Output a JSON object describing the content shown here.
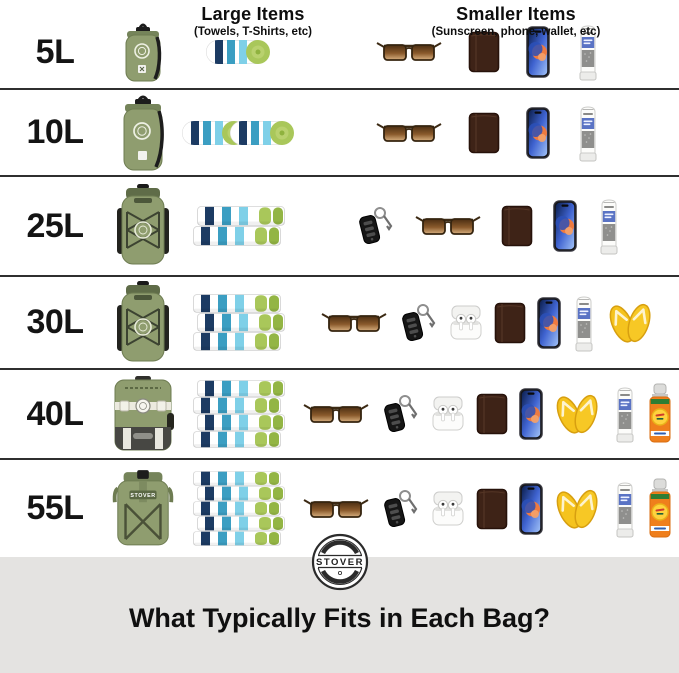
{
  "brand": {
    "name": "STOVER"
  },
  "columns": {
    "large": {
      "title": "Large Items",
      "subtitle": "(Towels, T-Shirts, etc)"
    },
    "small": {
      "title": "Smaller Items",
      "subtitle": "(Sunscreen, phone, wallet, etc)"
    }
  },
  "footer": {
    "title": "What Typically Fits in Each Bag?"
  },
  "colors": {
    "bag_olive": "#8f9d6f",
    "towel_navy": "#1c3b63",
    "towel_teal": "#3b9ec2",
    "towel_cyan": "#7fd0e8",
    "towel_green": "#a9c75a",
    "flip_flop_yellow": "#f5c31e",
    "spray_orange": "#ef7f1c",
    "sunscreen_label_blue": "#5a73c4",
    "footer_bg": "#e4e3e1",
    "divider": "#2f2f2f"
  },
  "rows": [
    {
      "size": "5L",
      "bag": "drybag-small",
      "bag_desc": "small dry bag",
      "towels": {
        "type": "rolled",
        "count": 1
      },
      "items": [
        "sunglasses",
        "wallet",
        "phone",
        "sunscreen-tube"
      ]
    },
    {
      "size": "10L",
      "bag": "drybag-tall",
      "bag_desc": "tall dry bag",
      "towels": {
        "type": "rolled",
        "count": 2
      },
      "items": [
        "sunglasses",
        "wallet",
        "phone",
        "sunscreen-tube"
      ]
    },
    {
      "size": "25L",
      "bag": "backpack-bungee",
      "bag_desc": "dry bag backpack",
      "towels": {
        "type": "folded",
        "count": 2
      },
      "items": [
        "car-keys",
        "sunglasses",
        "wallet",
        "phone",
        "sunscreen-tube"
      ]
    },
    {
      "size": "30L",
      "bag": "backpack-bungee",
      "bag_desc": "dry bag backpack",
      "towels": {
        "type": "folded",
        "count": 3
      },
      "items": [
        "sunglasses",
        "car-keys",
        "airpods",
        "wallet",
        "phone",
        "sunscreen-tube",
        "flip-flops"
      ]
    },
    {
      "size": "40L",
      "bag": "backpack-cooler",
      "bag_desc": "backpack cooler",
      "towels": {
        "type": "folded",
        "count": 4
      },
      "items": [
        "sunglasses",
        "car-keys",
        "airpods",
        "wallet",
        "phone",
        "flip-flops",
        "sunscreen-tube",
        "sunscreen-spray"
      ]
    },
    {
      "size": "55L",
      "bag": "backpack-rolltop",
      "bag_desc": "roll-top backpack",
      "towels": {
        "type": "folded",
        "count": 5
      },
      "items": [
        "sunglasses",
        "car-keys",
        "airpods",
        "wallet",
        "phone",
        "flip-flops",
        "sunscreen-tube",
        "sunscreen-spray"
      ]
    }
  ]
}
